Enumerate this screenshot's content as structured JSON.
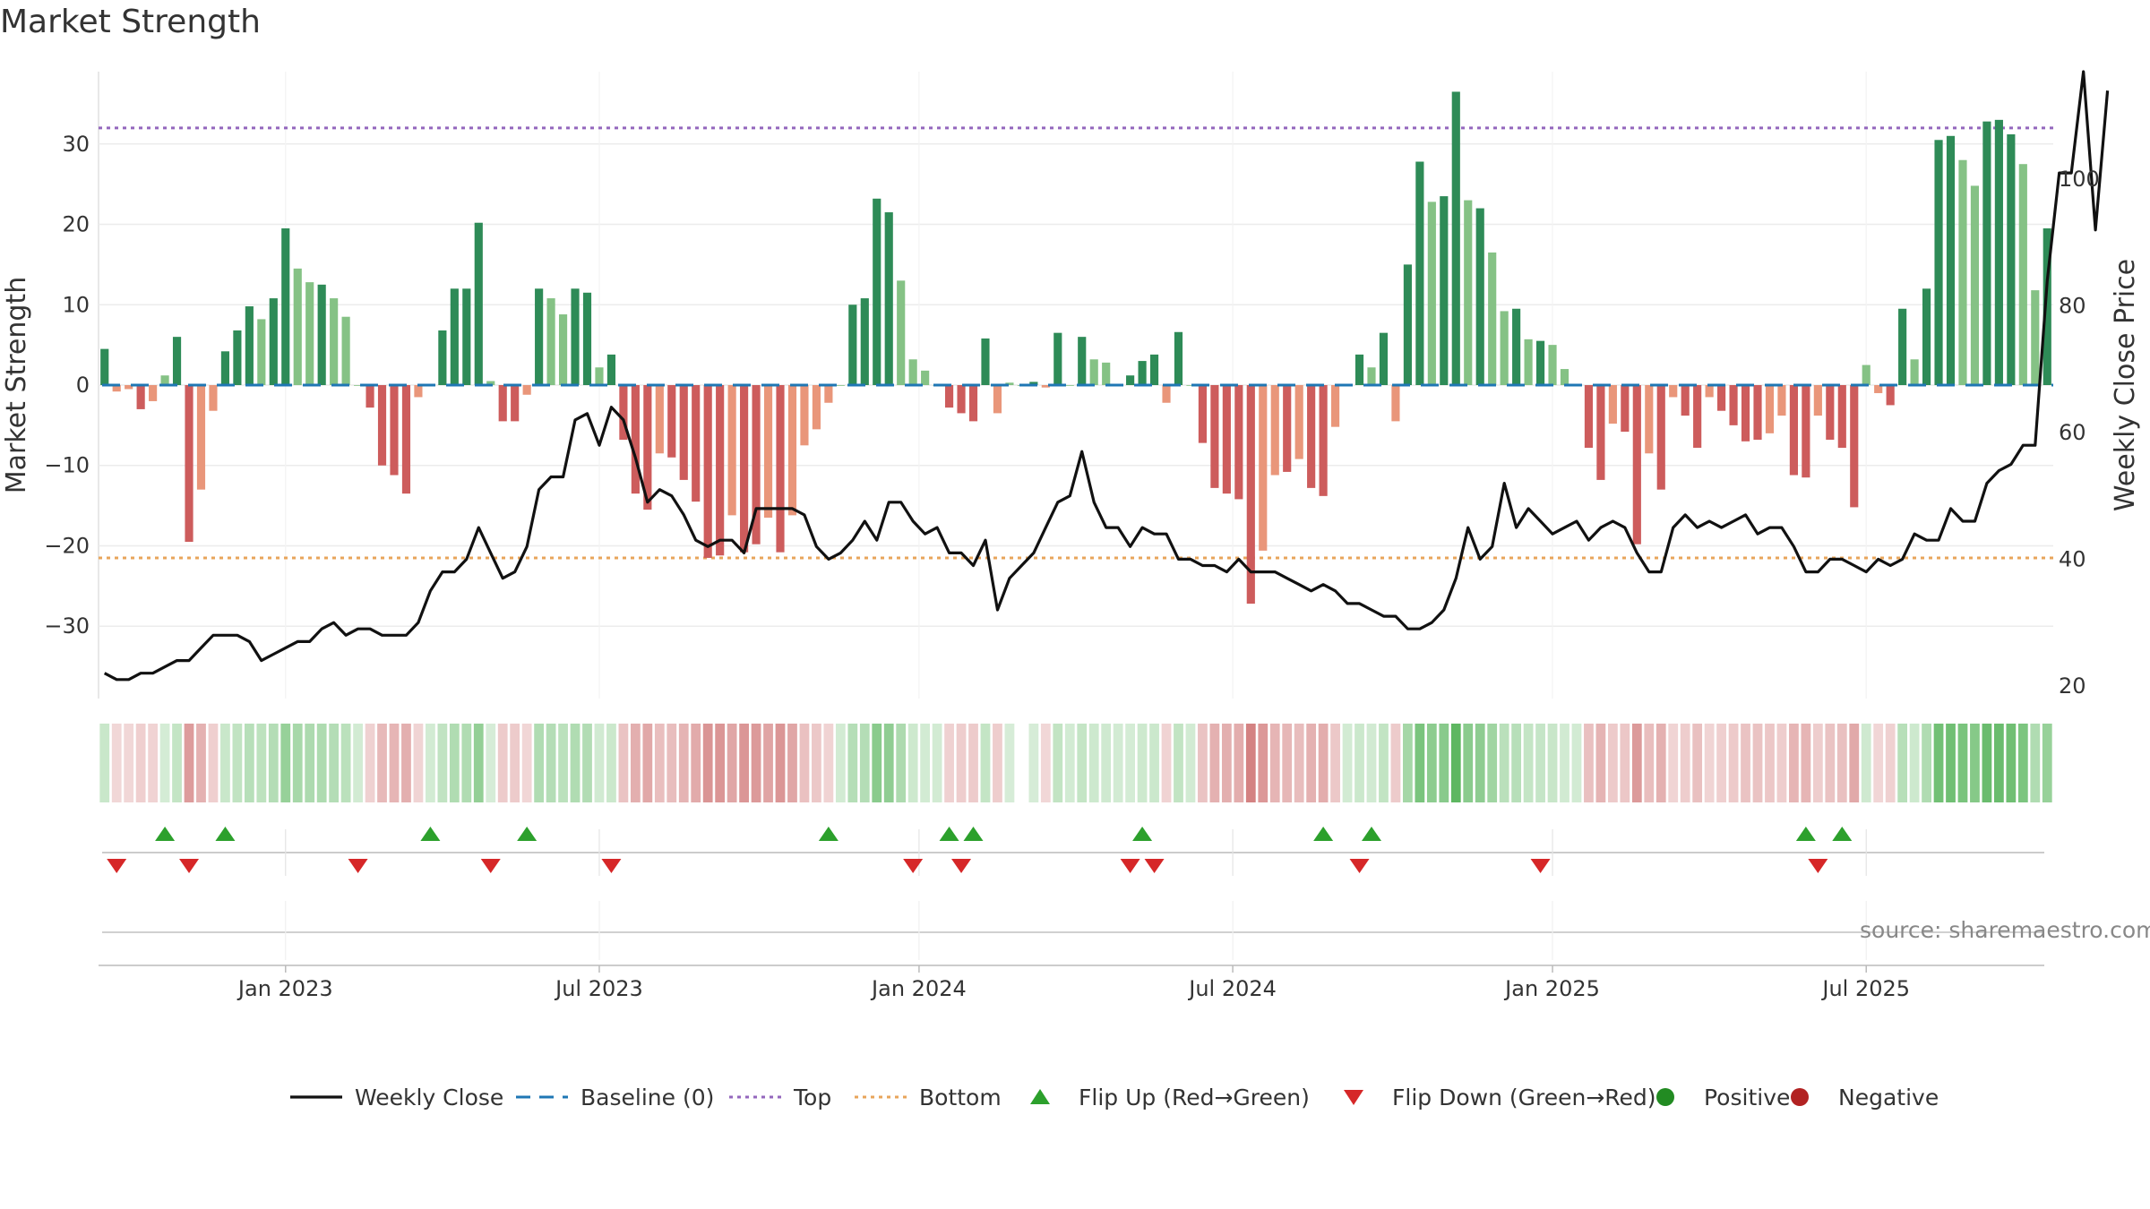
{
  "chart_data": {
    "type": "bar",
    "title": "Market Strength",
    "ylabel_left": "Market Strength",
    "ylabel_right": "Weekly Close Price",
    "ylim_left": [
      -39,
      39
    ],
    "ylim_right": [
      18,
      117
    ],
    "yticks_left": [
      "30",
      "20",
      "10",
      "0",
      "−10",
      "−20",
      "−30"
    ],
    "yticks_left_values": [
      30,
      20,
      10,
      0,
      -10,
      -20,
      -30
    ],
    "yticks_right": [
      "100",
      "80",
      "60",
      "40",
      "20"
    ],
    "yticks_right_values": [
      100,
      80,
      60,
      40,
      20
    ],
    "x_ticks": [
      "Jan 2023",
      "Jul 2023",
      "Jan 2024",
      "Jul 2024",
      "Jan 2025",
      "Jul 2025"
    ],
    "x_tick_weeks": [
      15,
      41,
      67.5,
      93.5,
      120,
      146
    ],
    "top_level": 32,
    "bottom_level": -21.5,
    "source": "source: sharemaestro.com",
    "colors": {
      "pos_strong": "#2e8b57",
      "pos_weak": "#85c285",
      "neg_strong": "#cd5c5c",
      "neg_weak": "#e9967a",
      "price": "#111111",
      "baseline": "#1f77b4",
      "top": "#9467bd",
      "bottom": "#e8a55b",
      "flip_up": "#2ca02c",
      "flip_down": "#d62728",
      "positive": "#228b22",
      "negative": "#b22222"
    },
    "series": [
      {
        "name": "Market Strength",
        "values": [
          4.5,
          -0.8,
          -0.5,
          -3,
          -2,
          1.2,
          6,
          -19.5,
          -13,
          -3.2,
          4.2,
          6.8,
          9.8,
          8.2,
          10.8,
          19.5,
          14.5,
          12.8,
          12.5,
          10.8,
          8.5,
          0,
          -2.8,
          -10,
          -11.2,
          -13.5,
          -1.5,
          0,
          6.8,
          12,
          12,
          20.2,
          0.5,
          -4.5,
          -4.5,
          -1.2,
          12,
          10.8,
          8.8,
          12,
          11.5,
          2.2,
          3.8,
          -6.8,
          -13.5,
          -15.5,
          -8.5,
          -9,
          -11.8,
          -14.5,
          -21.5,
          -21.2,
          -16.2,
          -20.8,
          -19.8,
          -16.5,
          -20.8,
          -16.2,
          -7.5,
          -5.5,
          -2.2,
          0,
          10,
          10.8,
          23.2,
          21.5,
          13,
          3.2,
          1.8,
          0,
          -2.8,
          -3.5,
          -4.5,
          5.8,
          -3.5,
          0.3,
          0,
          0.4,
          -0.3,
          6.5,
          0,
          6,
          3.2,
          2.8,
          0,
          1.2,
          3,
          3.8,
          -2.2,
          6.6,
          0,
          -7.2,
          -12.8,
          -13.5,
          -14.2,
          -27.2,
          -20.6,
          -11.2,
          -10.8,
          -9.2,
          -12.8,
          -13.8,
          -5.2,
          0,
          3.8,
          2.2,
          6.5,
          -4.5,
          15,
          27.8,
          22.8,
          23.5,
          36.5,
          23,
          22,
          16.5,
          9.2,
          9.5,
          5.7,
          5.5,
          5,
          2,
          0,
          -7.8,
          -11.8,
          -4.8,
          -5.8,
          -19.8,
          -8.5,
          -13,
          -1.5,
          -3.8,
          -7.8,
          -1.5,
          -3.2,
          -5,
          -7,
          -6.8,
          -6,
          -3.8,
          -11.2,
          -11.5,
          -3.8,
          -6.8,
          -7.8,
          -15.2,
          2.5,
          -1,
          -2.5,
          9.5,
          3.2,
          12,
          30.5,
          31,
          28,
          24.8,
          32.8,
          33,
          31.2,
          27.5,
          11.8,
          19.5
        ]
      },
      {
        "name": "Weekly Close",
        "values": [
          22,
          21,
          21,
          22,
          22,
          23,
          24,
          24,
          26,
          28,
          28,
          28,
          27,
          24,
          25,
          26,
          27,
          27,
          29,
          30,
          28,
          29,
          29,
          28,
          28,
          28,
          30,
          35,
          38,
          38,
          40,
          45,
          41,
          37,
          38,
          42,
          51,
          53,
          53,
          62,
          63,
          58,
          64,
          62,
          56,
          49,
          51,
          50,
          47,
          43,
          42,
          43,
          43,
          41,
          48,
          48,
          48,
          48,
          47,
          42,
          40,
          41,
          43,
          46,
          43,
          49,
          49,
          46,
          44,
          45,
          41,
          41,
          39,
          43,
          32,
          37,
          39,
          41,
          45,
          49,
          50,
          57,
          49,
          45,
          45,
          42,
          45,
          44,
          44,
          40,
          40,
          39,
          39,
          38,
          40,
          38,
          38,
          38,
          37,
          36,
          35,
          36,
          35,
          33,
          33,
          32,
          31,
          31,
          29,
          29,
          30,
          32,
          37,
          45,
          40,
          42,
          52,
          45,
          48,
          46,
          44,
          45,
          46,
          43,
          45,
          46,
          45,
          41,
          38,
          38,
          45,
          47,
          45,
          46,
          45,
          46,
          47,
          44,
          45,
          45,
          42,
          38,
          38,
          40,
          40,
          39,
          38,
          40,
          39,
          40,
          44,
          43,
          43,
          48,
          46,
          46,
          52,
          54,
          55,
          58,
          58,
          84,
          101,
          101,
          117,
          92,
          114
        ]
      }
    ],
    "flip_up_weeks": [
      5,
      10,
      27,
      35,
      60,
      70,
      72,
      86,
      101,
      105,
      141,
      144
    ],
    "flip_down_weeks": [
      1,
      7,
      21,
      32,
      42,
      67,
      71,
      85,
      87,
      104,
      119,
      142
    ]
  },
  "legend": [
    {
      "key": "weekly-close",
      "label": "Weekly Close"
    },
    {
      "key": "baseline",
      "label": "Baseline (0)"
    },
    {
      "key": "top",
      "label": "Top"
    },
    {
      "key": "bottom",
      "label": "Bottom"
    },
    {
      "key": "flip-up",
      "label": "Flip Up (Red→Green)"
    },
    {
      "key": "flip-down",
      "label": "Flip Down (Green→Red)"
    },
    {
      "key": "positive",
      "label": "Positive"
    },
    {
      "key": "negative",
      "label": "Negative"
    }
  ]
}
